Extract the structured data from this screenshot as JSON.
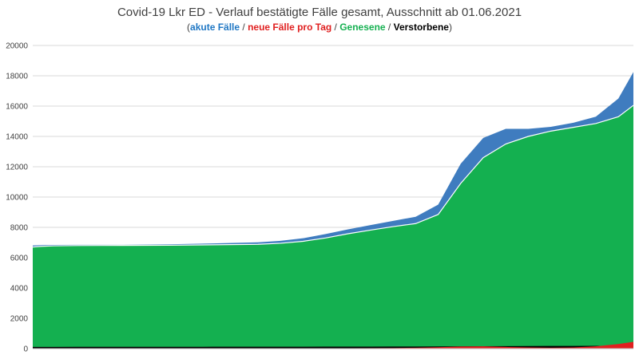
{
  "chart_data": {
    "type": "area",
    "title": "Covid-19 Lkr ED - Verlauf bestätigte Fälle gesamt, Ausschnitt ab 01.06.2021",
    "subtitle_parts": [
      {
        "text": "akute Fälle",
        "color": "#1f77c4"
      },
      {
        "text": "neue Fälle pro Tag",
        "color": "#e02020"
      },
      {
        "text": "Genesene",
        "color": "#14b050"
      },
      {
        "text": "Verstorbene",
        "color": "#000000"
      }
    ],
    "subtitle_separator": " / ",
    "subtitle_open": "(",
    "subtitle_close": ")",
    "xlabel": "",
    "ylabel": "",
    "ylim": [
      0,
      20000
    ],
    "yticks": [
      "0",
      "2000",
      "4000",
      "6000",
      "8000",
      "10000",
      "12000",
      "14000",
      "16000",
      "18000",
      "20000"
    ],
    "grid": true,
    "x_days": [
      0,
      6,
      14,
      30,
      60,
      90,
      120,
      150,
      165,
      180,
      195,
      210,
      225,
      240,
      255,
      270,
      285,
      300,
      315,
      330,
      345,
      360,
      375,
      390,
      400
    ],
    "series": [
      {
        "name": "Genesene",
        "color": "#14b050",
        "values": [
          6700,
          6750,
          6780,
          6800,
          6810,
          6820,
          6850,
          6880,
          6950,
          7080,
          7300,
          7580,
          7820,
          8050,
          8250,
          8850,
          10900,
          12600,
          13500,
          14000,
          14350,
          14600,
          14850,
          15300,
          16050
        ]
      },
      {
        "name": "akute Fälle",
        "color": "#3f7cbf",
        "values": [
          100,
          80,
          60,
          50,
          40,
          60,
          90,
          130,
          160,
          200,
          260,
          290,
          330,
          380,
          450,
          650,
          1300,
          1300,
          1000,
          500,
          280,
          300,
          450,
          1200,
          2200
        ]
      },
      {
        "name": "Verstorbene",
        "color": "#000000",
        "values": [
          110,
          112,
          114,
          116,
          118,
          120,
          122,
          124,
          126,
          128,
          130,
          132,
          134,
          136,
          138,
          145,
          150,
          158,
          165,
          170,
          175,
          178,
          182,
          186,
          190
        ]
      },
      {
        "name": "neue Fälle pro Tag",
        "color": "#e02020",
        "values": [
          5,
          5,
          5,
          5,
          5,
          5,
          5,
          10,
          10,
          15,
          20,
          25,
          30,
          40,
          60,
          90,
          140,
          150,
          110,
          80,
          60,
          80,
          150,
          300,
          450
        ]
      }
    ]
  }
}
